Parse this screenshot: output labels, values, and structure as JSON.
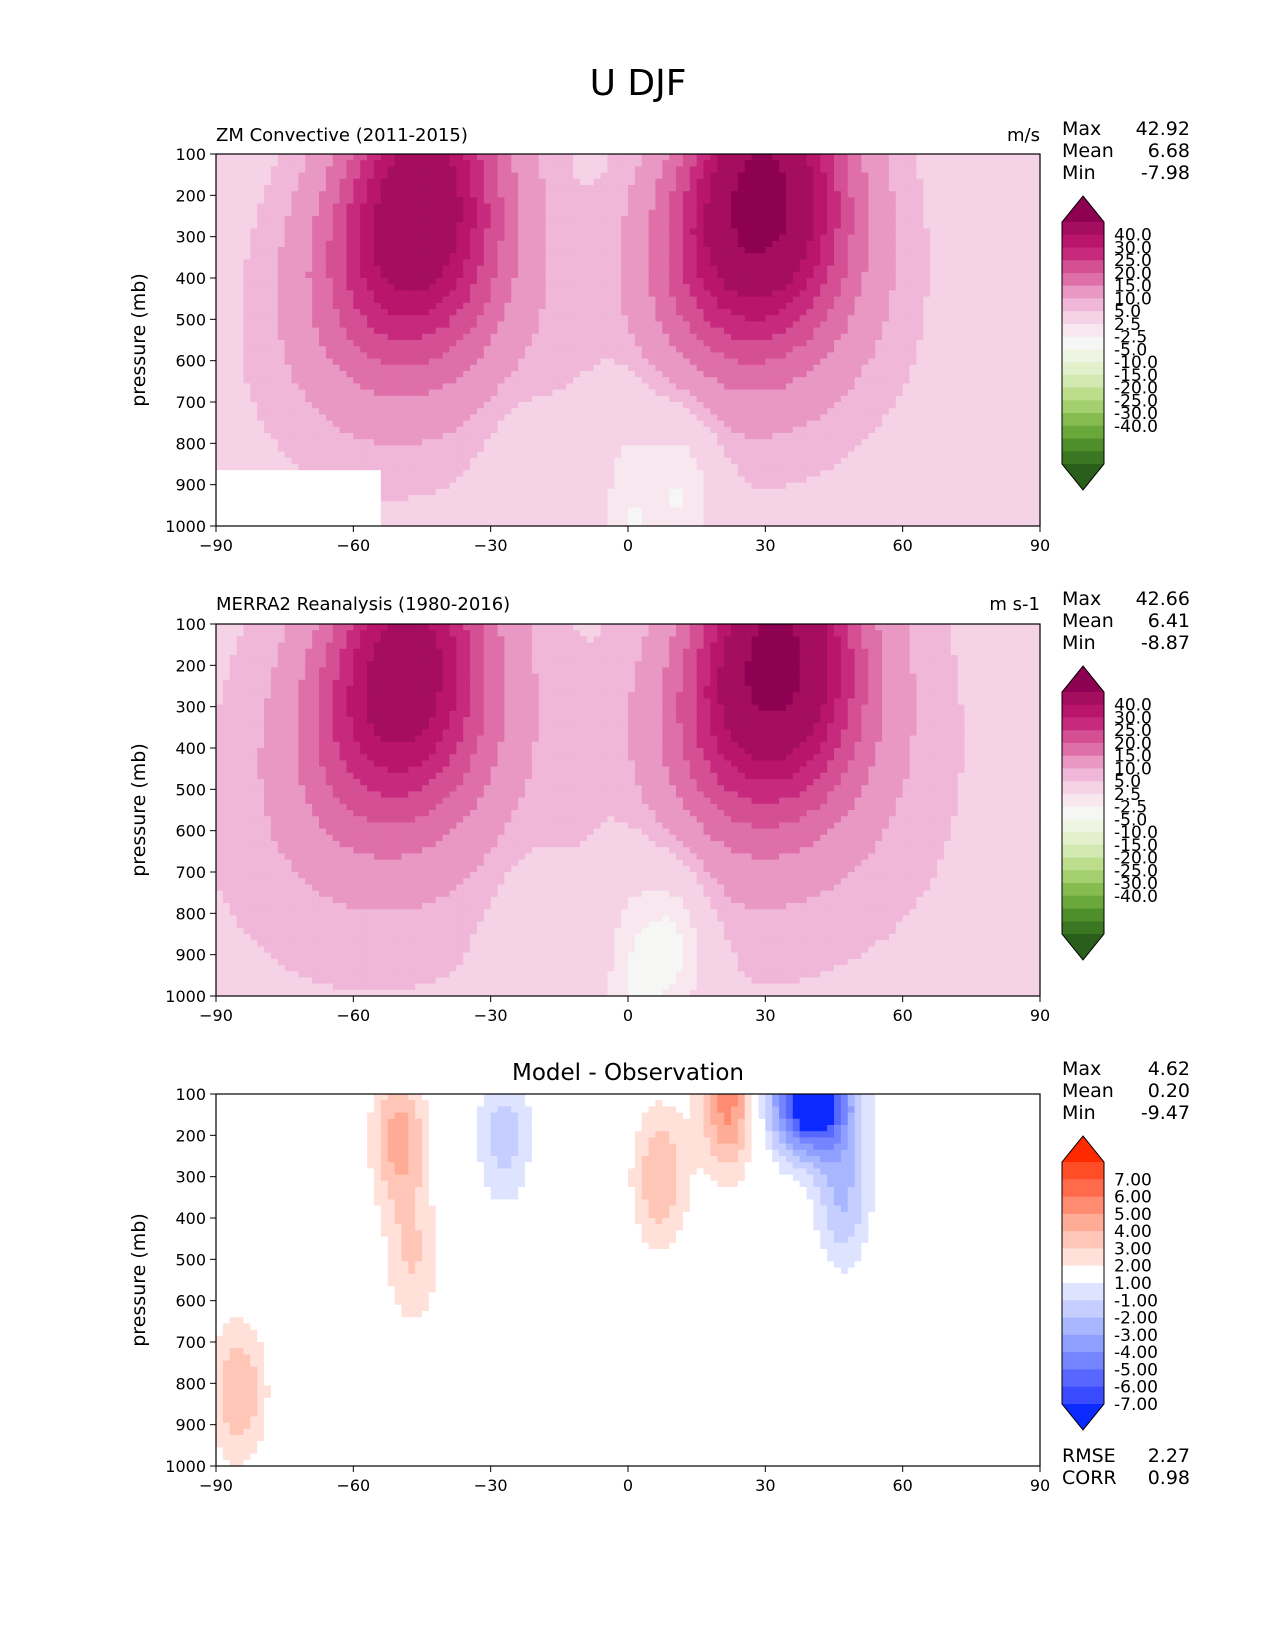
{
  "figure": {
    "title": "U DJF"
  },
  "panels": [
    {
      "title_left": "ZM Convective (2011-2015)",
      "title_center": "",
      "units": "m/s",
      "ylabel": "pressure (mb)",
      "stats": [
        {
          "label": "Max",
          "value": "42.92"
        },
        {
          "label": "Mean",
          "value": "6.68"
        },
        {
          "label": "Min",
          "value": "-7.98"
        }
      ],
      "colorbar": "fill",
      "bottom_stats": []
    },
    {
      "title_left": "MERRA2 Reanalysis (1980-2016)",
      "title_center": "",
      "units": "m s-1",
      "ylabel": "pressure (mb)",
      "stats": [
        {
          "label": "Max",
          "value": "42.66"
        },
        {
          "label": "Mean",
          "value": "6.41"
        },
        {
          "label": "Min",
          "value": "-8.87"
        }
      ],
      "colorbar": "fill",
      "bottom_stats": []
    },
    {
      "title_left": "",
      "title_center": "Model - Observation",
      "units": "",
      "ylabel": "pressure (mb)",
      "stats": [
        {
          "label": "Max",
          "value": "4.62"
        },
        {
          "label": "Mean",
          "value": "0.20"
        },
        {
          "label": "Min",
          "value": "-9.47"
        }
      ],
      "colorbar": "diff",
      "bottom_stats": [
        {
          "label": "RMSE",
          "value": "2.27"
        },
        {
          "label": "CORR",
          "value": "0.98"
        }
      ]
    }
  ],
  "colorbars": {
    "fill": {
      "labels": [
        "40.0",
        "30.0",
        "25.0",
        "20.0",
        "15.0",
        "10.0",
        "5.0",
        "2.5",
        "-2.5",
        "-5.0",
        "-10.0",
        "-15.0",
        "-20.0",
        "-25.0",
        "-30.0",
        "-40.0"
      ],
      "colors": [
        "#8e0152",
        "#a50d5e",
        "#b8156b",
        "#c72a7c",
        "#d54f94",
        "#df6fa8",
        "#e998c4",
        "#f0b7d8",
        "#f5d2e6",
        "#f9e7f0",
        "#f6f6f4",
        "#eef5e3",
        "#e2f0cc",
        "#d2e8b1",
        "#bcdd8b",
        "#a3cf6e",
        "#86bb4f",
        "#6aa83b",
        "#4e8f2b",
        "#3b7722",
        "#2a5f1b"
      ]
    },
    "diff": {
      "labels": [
        "7.00",
        "6.00",
        "5.00",
        "4.00",
        "3.00",
        "2.00",
        "1.00",
        "-1.00",
        "-2.00",
        "-3.00",
        "-4.00",
        "-5.00",
        "-6.00",
        "-7.00"
      ],
      "colors": [
        "#ff2a00",
        "#ff4d26",
        "#ff6a4d",
        "#ff8c70",
        "#ffac96",
        "#ffc6b8",
        "#ffe1d9",
        "#ffffff",
        "#dee3ff",
        "#c5ceff",
        "#a8b6ff",
        "#8f9fff",
        "#7584ff",
        "#5767ff",
        "#3a4aff",
        "#0a2aff"
      ]
    }
  },
  "chart_data": [
    {
      "type": "heatmap",
      "title": "ZM Convective (2011-2015)",
      "xlabel": "",
      "ylabel": "pressure (mb)",
      "xlim": [
        -90,
        90
      ],
      "ylim": [
        1000,
        100
      ],
      "x_ticks": [
        -90,
        -60,
        -30,
        0,
        30,
        60,
        90
      ],
      "y_ticks": [
        100,
        200,
        300,
        400,
        500,
        600,
        700,
        800,
        900,
        1000
      ],
      "units": "m/s",
      "max": 42.92,
      "mean": 6.68,
      "min": -7.98,
      "jets": [
        {
          "lat": -46,
          "p": 250,
          "value": 37
        },
        {
          "lat": 29,
          "p": 220,
          "value": 43
        }
      ],
      "easterly_regions": [
        {
          "lat": 12,
          "p": 900,
          "value": -7
        },
        {
          "lat": -24,
          "p": 950,
          "value": -3
        }
      ]
    },
    {
      "type": "heatmap",
      "title": "MERRA2 Reanalysis (1980-2016)",
      "xlabel": "",
      "ylabel": "pressure (mb)",
      "xlim": [
        -90,
        90
      ],
      "ylim": [
        1000,
        100
      ],
      "x_ticks": [
        -90,
        -60,
        -30,
        0,
        30,
        60,
        90
      ],
      "y_ticks": [
        100,
        200,
        300,
        400,
        500,
        600,
        700,
        800,
        900,
        1000
      ],
      "units": "m s-1",
      "max": 42.66,
      "mean": 6.41,
      "min": -8.87,
      "jets": [
        {
          "lat": -49,
          "p": 230,
          "value": 34
        },
        {
          "lat": 32,
          "p": 200,
          "value": 42
        }
      ],
      "easterly_regions": [
        {
          "lat": 10,
          "p": 870,
          "value": -8
        },
        {
          "lat": -22,
          "p": 930,
          "value": -4
        }
      ]
    },
    {
      "type": "heatmap",
      "title": "Model - Observation",
      "xlabel": "",
      "ylabel": "pressure (mb)",
      "xlim": [
        -90,
        90
      ],
      "ylim": [
        1000,
        100
      ],
      "x_ticks": [
        -90,
        -60,
        -30,
        0,
        30,
        60,
        90
      ],
      "y_ticks": [
        100,
        200,
        300,
        400,
        500,
        600,
        700,
        800,
        900,
        1000
      ],
      "max": 4.62,
      "mean": 0.2,
      "min": -9.47,
      "rmse": 2.27,
      "corr": 0.98,
      "anomalies": [
        {
          "lat": -50,
          "p": 210,
          "value": 3.5
        },
        {
          "lat": -47,
          "p": 500,
          "value": 2.0
        },
        {
          "lat": -27,
          "p": 200,
          "value": -2.5
        },
        {
          "lat": 7,
          "p": 300,
          "value": 3.0
        },
        {
          "lat": 22,
          "p": 120,
          "value": 4.5
        },
        {
          "lat": 40,
          "p": 120,
          "value": -9.0
        },
        {
          "lat": 47,
          "p": 350,
          "value": -3.0
        },
        {
          "lat": -85,
          "p": 820,
          "value": 3.0
        }
      ]
    }
  ]
}
